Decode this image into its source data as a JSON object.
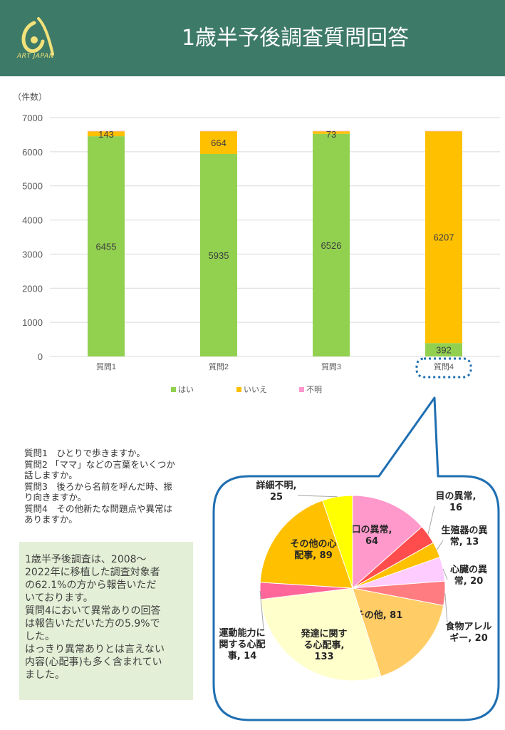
{
  "header": {
    "title": "1歳半予後調査質問回答",
    "logo_text": "ART JAPAN",
    "background": "#3e7a68"
  },
  "chart_data": [
    {
      "type": "bar",
      "stacked": true,
      "ylabel": "（件数）",
      "ylim": [
        0,
        7000
      ],
      "yticks": [
        0,
        1000,
        2000,
        3000,
        4000,
        5000,
        6000,
        7000
      ],
      "categories": [
        "質問1",
        "質問2",
        "質問3",
        "質問4"
      ],
      "series": [
        {
          "name": "はい",
          "color": "#92d050",
          "values": [
            6455,
            5935,
            6526,
            392
          ]
        },
        {
          "name": "いいえ",
          "color": "#ffc000",
          "values": [
            143,
            664,
            73,
            6207
          ]
        },
        {
          "name": "不明",
          "color": "#ff99cc",
          "values": [
            12,
            12,
            12,
            12
          ]
        }
      ],
      "data_labels": [
        [
          "6455",
          "5935",
          "6526",
          "392"
        ],
        [
          "143",
          "664",
          "73",
          "6207"
        ]
      ],
      "legend_position": "bottom",
      "grid": true,
      "highlight_category": "質問4"
    },
    {
      "type": "pie",
      "slices": [
        {
          "label": "口の異常",
          "value": 64,
          "color": "#ff99cc"
        },
        {
          "label": "目の異常",
          "value": 16,
          "color": "#ff4d4d"
        },
        {
          "label": "生殖器の異常",
          "value": 13,
          "color": "#ffc000"
        },
        {
          "label": "心臓の異常",
          "value": 20,
          "color": "#ffccff"
        },
        {
          "label": "食物アレルギー",
          "value": 20,
          "color": "#ff7c80"
        },
        {
          "label": "その他",
          "value": 81,
          "color": "#ffcc66"
        },
        {
          "label": "発達に関する心配事",
          "value": 133,
          "color": "#ffffcc"
        },
        {
          "label": "運動能力に関する心配事",
          "value": 14,
          "color": "#ff6699"
        },
        {
          "label": "その他の心配事",
          "value": 89,
          "color": "#ffc000"
        },
        {
          "label": "詳細不明",
          "value": 25,
          "color": "#ffff00"
        }
      ]
    }
  ],
  "questions": [
    "質問1　ひとりで歩きますか。",
    "質問2 「ママ」などの言葉をいくつか",
    "話しますか。",
    "質問3　後ろから名前を呼んだ時、振",
    "り向きますか。",
    "質問4　その他新たな問題点や異常は",
    "ありますか。"
  ],
  "note": [
    "1歳半予後調査は、2008～",
    "2022年に移植した調査対象者",
    "の62.1%の方から報告いただ",
    "いております。",
    "質問4において異常ありの回答",
    "は報告いただいた方の5.9%で",
    "した。",
    "はっきり異常ありとは言えない",
    "内容(心配事)も多く含まれてい",
    "ました。"
  ]
}
